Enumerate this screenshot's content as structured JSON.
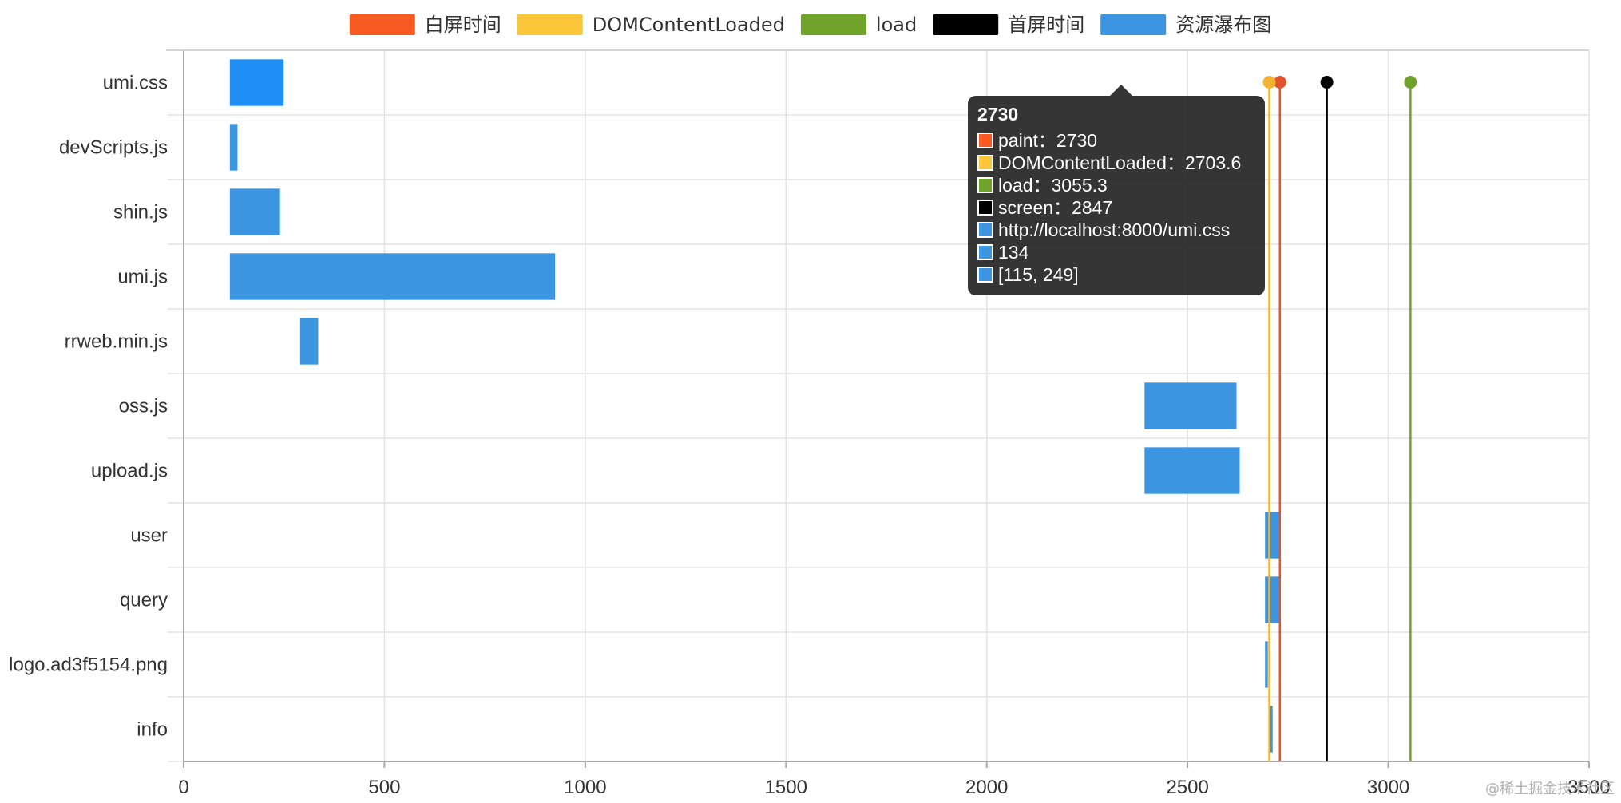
{
  "chart_data": {
    "type": "bar",
    "orientation": "horizontal",
    "title": "",
    "categories": [
      "umi.css",
      "devScripts.js",
      "shin.js",
      "umi.js",
      "rrweb.min.js",
      "oss.js",
      "upload.js",
      "user",
      "query",
      "logo.ad3f5154.png",
      "info"
    ],
    "ranges": [
      [
        115,
        249
      ],
      [
        115,
        134
      ],
      [
        115,
        240
      ],
      [
        115,
        925
      ],
      [
        290,
        335
      ],
      [
        2393,
        2622
      ],
      [
        2393,
        2630
      ],
      [
        2693,
        2730
      ],
      [
        2693,
        2732
      ],
      [
        2693,
        2700
      ],
      [
        2705,
        2712
      ]
    ],
    "xlim": [
      0,
      3500
    ],
    "xticks": [
      0,
      500,
      1000,
      1500,
      2000,
      2500,
      3000,
      3500
    ],
    "grid": true,
    "legend": {
      "placement": "top-center",
      "entries": [
        {
          "name": "白屏时间",
          "color": "#f75b22"
        },
        {
          "name": "DOMContentLoaded",
          "color": "#fbc73a"
        },
        {
          "name": "load",
          "color": "#6fa32a"
        },
        {
          "name": "首屏时间",
          "color": "#000000"
        },
        {
          "name": "资源瀑布图",
          "color": "#3b95e0"
        }
      ]
    },
    "markers": [
      {
        "name": "paint",
        "value": 2730,
        "color": "#e4532b"
      },
      {
        "name": "DOMContentLoaded",
        "value": 2703.6,
        "color": "#f1b533"
      },
      {
        "name": "load",
        "value": 3055.3,
        "color": "#6fa32a"
      },
      {
        "name": "screen",
        "value": 2847,
        "color": "#000000"
      }
    ],
    "bar_color": "#3b95e0",
    "bar_highlight_color": "#1f8ff5",
    "highlighted_index": 0
  },
  "tooltip": {
    "title": "2730",
    "rows": [
      {
        "text": "paint：2730",
        "color": "#f75b22"
      },
      {
        "text": "DOMContentLoaded：2703.6",
        "color": "#fbc73a"
      },
      {
        "text": "load：3055.3",
        "color": "#6fa32a"
      },
      {
        "text": "screen：2847",
        "color": "#000000"
      },
      {
        "text": "http://localhost:8000/umi.css",
        "color": "#3b95e0"
      },
      {
        "text": "134",
        "color": "#3b95e0"
      },
      {
        "text": "[115, 249]",
        "color": "#3b95e0"
      }
    ]
  },
  "watermark": "@稀土掘金技术社区"
}
